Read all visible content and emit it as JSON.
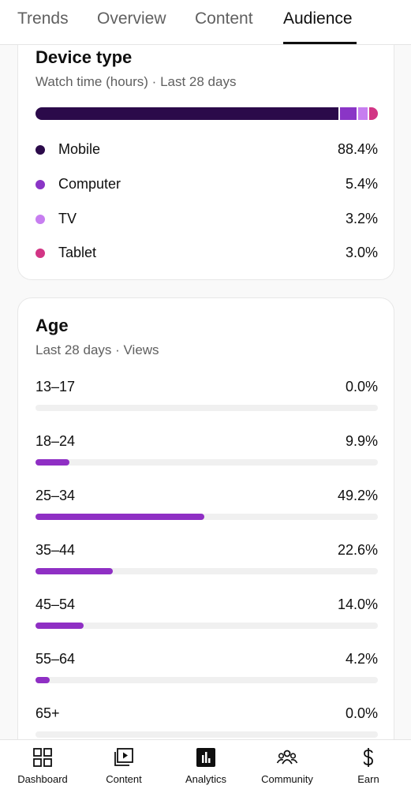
{
  "tabs": [
    "Trends",
    "Overview",
    "Content",
    "Audience"
  ],
  "active_tab": "Audience",
  "device_card": {
    "title": "Device type",
    "subtitle": "Watch time (hours) · Last 28 days",
    "items": [
      {
        "label": "Mobile",
        "value": "88.4%",
        "pct": 88.4,
        "color": "#2b0a4a"
      },
      {
        "label": "Computer",
        "value": "5.4%",
        "pct": 5.4,
        "color": "#8a35c6"
      },
      {
        "label": "TV",
        "value": "3.2%",
        "pct": 3.2,
        "color": "#c77ef0"
      },
      {
        "label": "Tablet",
        "value": "3.0%",
        "pct": 3.0,
        "color": "#d23585"
      }
    ]
  },
  "age_card": {
    "title": "Age",
    "subtitle": "Last 28 days · Views",
    "rows": [
      {
        "label": "13–17",
        "value": "0.0%",
        "pct": 0.0
      },
      {
        "label": "18–24",
        "value": "9.9%",
        "pct": 9.9
      },
      {
        "label": "25–34",
        "value": "49.2%",
        "pct": 49.2
      },
      {
        "label": "35–44",
        "value": "22.6%",
        "pct": 22.6
      },
      {
        "label": "45–54",
        "value": "14.0%",
        "pct": 14.0
      },
      {
        "label": "55–64",
        "value": "4.2%",
        "pct": 4.2
      },
      {
        "label": "65+",
        "value": "0.0%",
        "pct": 0.0
      }
    ]
  },
  "bottom_nav": [
    {
      "label": "Dashboard",
      "icon": "dashboard-icon"
    },
    {
      "label": "Content",
      "icon": "content-icon"
    },
    {
      "label": "Analytics",
      "icon": "analytics-icon",
      "active": true
    },
    {
      "label": "Community",
      "icon": "community-icon"
    },
    {
      "label": "Earn",
      "icon": "earn-icon"
    }
  ]
}
